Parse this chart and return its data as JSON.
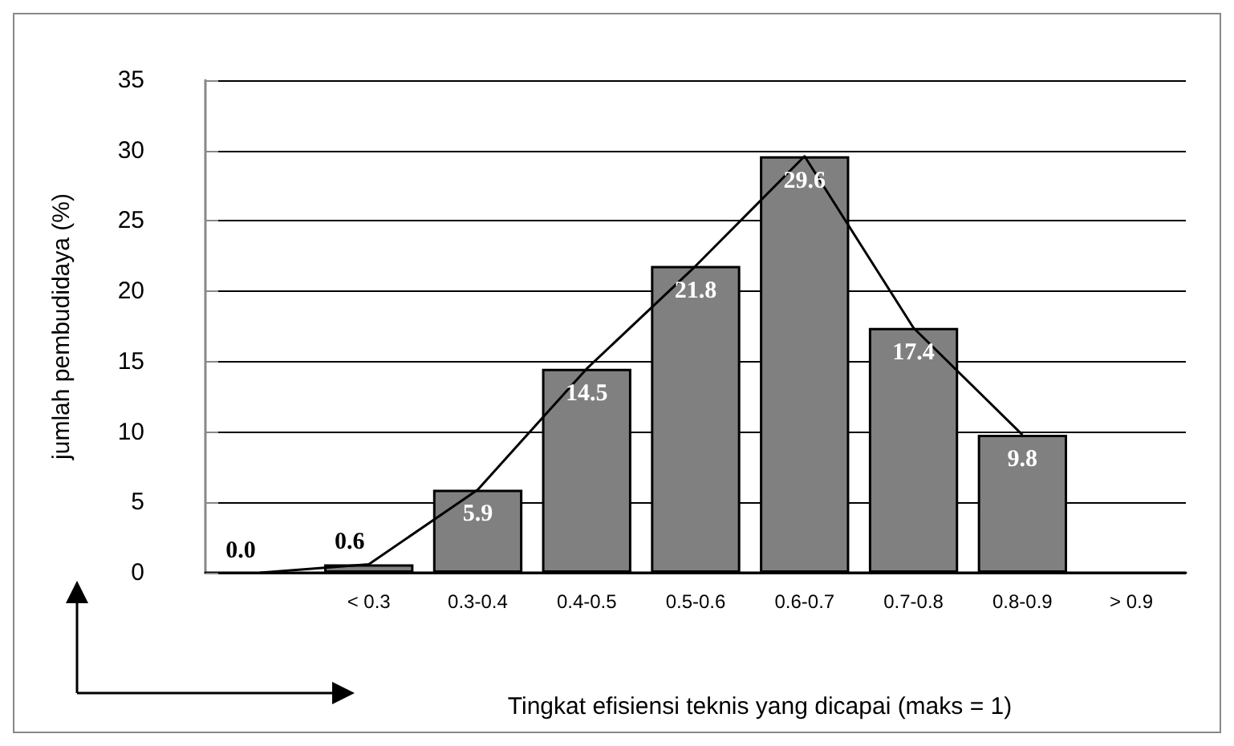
{
  "chart_data": {
    "type": "bar",
    "xlabel": "Tingkat efisiensi teknis yang dicapai (maks = 1)",
    "ylabel": "jumlah pembudidaya (%)",
    "categories": [
      null,
      "< 0.3",
      "0.3-0.4",
      "0.4-0.5",
      "0.5-0.6",
      "0.6-0.7",
      "0.7-0.8",
      "0.8-0.9",
      "> 0.9"
    ],
    "series": [
      {
        "color": "#808080",
        "values": [
          null,
          0.6,
          5.9,
          14.5,
          21.8,
          29.6,
          17.4,
          9.8,
          null
        ]
      },
      {
        "type": "line",
        "color": "#000000",
        "values": [
          0,
          0.6,
          5.9,
          14.5,
          21.8,
          29.6,
          17.4,
          9.8,
          null
        ],
        "value_labels": [
          "0.0",
          "0.6",
          "5.9",
          "14.5",
          "21.8",
          "29.6",
          "17.4",
          "9.8",
          null
        ]
      }
    ],
    "ylim": [
      0,
      35
    ],
    "yticks": [
      0,
      5,
      10,
      15,
      20,
      25,
      30,
      35
    ],
    "grid": "y",
    "marker": "none",
    "line_style": "solid"
  }
}
